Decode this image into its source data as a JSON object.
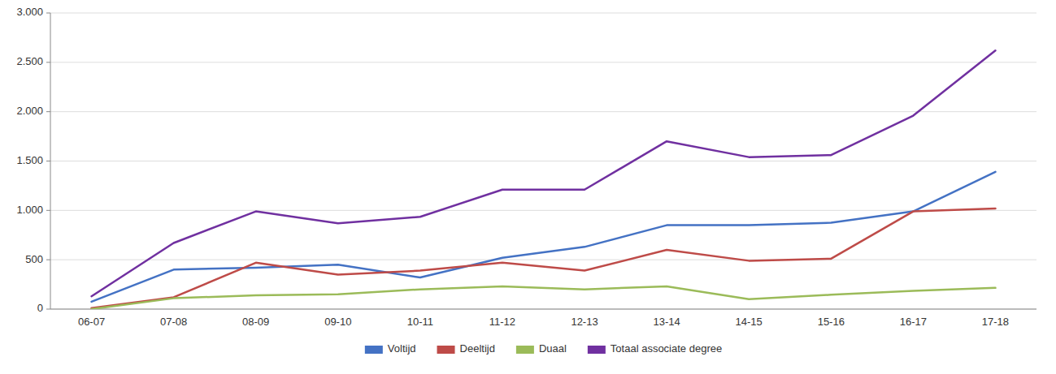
{
  "chart_data": {
    "type": "line",
    "categories": [
      "06-07",
      "07-08",
      "08-09",
      "09-10",
      "10-11",
      "11-12",
      "12-13",
      "13-14",
      "14-15",
      "15-16",
      "16-17",
      "17-18"
    ],
    "series": [
      {
        "name": "Voltijd",
        "color": "#4472C4",
        "values": [
          75,
          400,
          420,
          450,
          320,
          520,
          630,
          850,
          850,
          875,
          990,
          1390
        ]
      },
      {
        "name": "Deeltijd",
        "color": "#BE4B48",
        "values": [
          10,
          120,
          470,
          350,
          390,
          470,
          390,
          600,
          490,
          510,
          990,
          1020
        ]
      },
      {
        "name": "Duaal",
        "color": "#9BBB59",
        "values": [
          0,
          110,
          140,
          150,
          200,
          230,
          200,
          230,
          100,
          145,
          185,
          215
        ]
      },
      {
        "name": "Totaal associate degree",
        "color": "#7030A0",
        "values": [
          130,
          670,
          990,
          870,
          935,
          1210,
          1210,
          1700,
          1540,
          1560,
          1960,
          2620
        ]
      }
    ],
    "ylim": [
      0,
      3000
    ],
    "yticks": [
      0,
      500,
      {
        "value": 1000,
        "label": "1.000"
      },
      {
        "value": 1500,
        "label": "1.500"
      },
      {
        "value": 2000,
        "label": "2.000"
      },
      {
        "value": 2500,
        "label": "2.500"
      },
      {
        "value": 3000,
        "label": "3.000"
      }
    ],
    "grid": true,
    "legend": "bottom"
  }
}
